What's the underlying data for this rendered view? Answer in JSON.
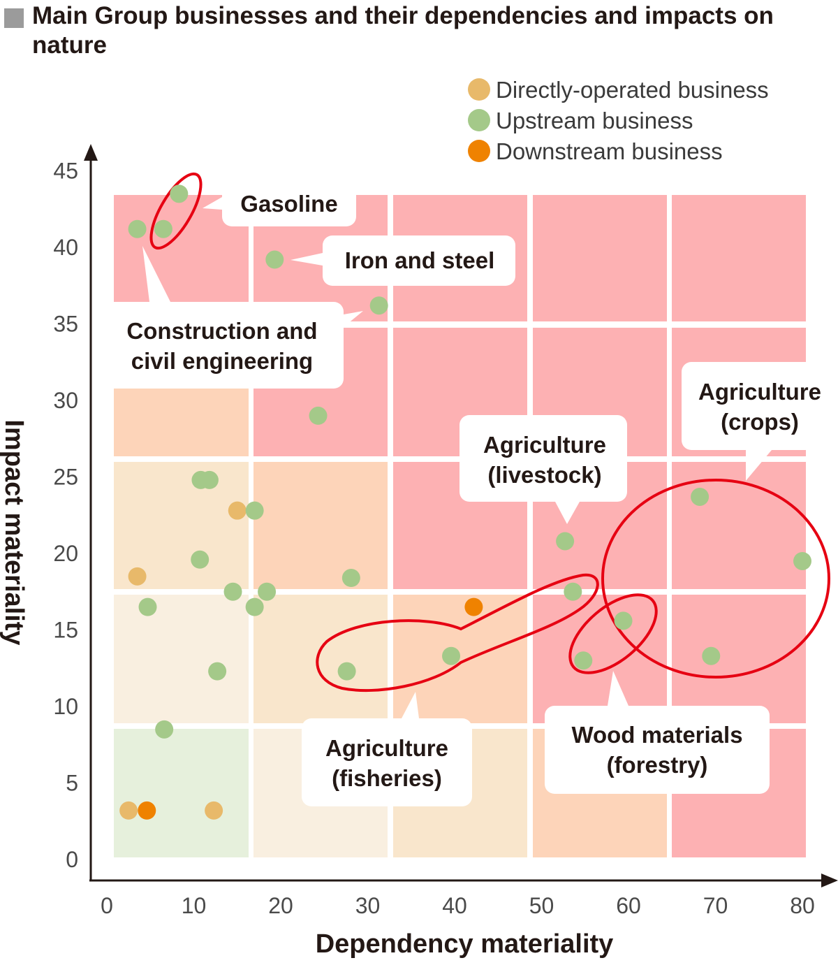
{
  "title": "Main Group businesses and their dependencies and impacts on nature",
  "legend": [
    {
      "label": "Directly-operated business",
      "color": "#e8b96a"
    },
    {
      "label": "Upstream business",
      "color": "#a4c989"
    },
    {
      "label": "Downstream business",
      "color": "#ef8200"
    }
  ],
  "colors": {
    "red_zone": "#fdb1b3",
    "orange_zone": "#fdd4b9",
    "peach_zone": "#f9e6cc",
    "cream_zone": "#f9efe0",
    "green_zone": "#e6f0dc",
    "highlight_ring": "#e60012"
  },
  "chart_data": {
    "type": "scatter",
    "xlabel": "Dependency materiality",
    "ylabel": "Impact materiality",
    "xlim": [
      0,
      80
    ],
    "ylim": [
      0,
      45
    ],
    "xticks": [
      "0",
      "10",
      "20",
      "30",
      "40",
      "50",
      "60",
      "70",
      "80"
    ],
    "yticks": [
      "0",
      "5",
      "10",
      "15",
      "20",
      "25",
      "30",
      "35",
      "40",
      "45"
    ],
    "grid": false,
    "legend_position": "top-right",
    "series": [
      {
        "name": "Directly-operated business",
        "color": "#e8b96a",
        "points": [
          [
            3.5,
            18.5
          ],
          [
            2.5,
            3.2
          ],
          [
            12.3,
            3.2
          ],
          [
            15,
            22.8
          ]
        ]
      },
      {
        "name": "Upstream business",
        "color": "#a4c989",
        "points": [
          [
            8.3,
            43.5
          ],
          [
            3.5,
            41.2
          ],
          [
            6.5,
            41.2
          ],
          [
            19.3,
            39.2
          ],
          [
            31.3,
            36.2
          ],
          [
            24.3,
            29
          ],
          [
            10.8,
            24.8
          ],
          [
            11.8,
            24.8
          ],
          [
            17,
            22.8
          ],
          [
            10.7,
            19.6
          ],
          [
            4.7,
            16.5
          ],
          [
            14.5,
            17.5
          ],
          [
            18.4,
            17.5
          ],
          [
            17,
            16.5
          ],
          [
            28.1,
            18.4
          ],
          [
            12.7,
            12.3
          ],
          [
            6.6,
            8.5
          ],
          [
            27.6,
            12.3
          ],
          [
            39.6,
            13.3
          ],
          [
            52.7,
            20.8
          ],
          [
            53.6,
            17.5
          ],
          [
            54.8,
            13
          ],
          [
            59.4,
            15.6
          ],
          [
            68.2,
            23.7
          ],
          [
            80,
            19.5
          ],
          [
            69.5,
            13.3
          ]
        ]
      },
      {
        "name": "Downstream business",
        "color": "#ef8200",
        "points": [
          [
            4.6,
            3.2
          ],
          [
            42.2,
            16.5
          ]
        ]
      }
    ],
    "annotations": [
      "Gasoline",
      "Iron and steel",
      "Construction and civil engineering",
      "Agriculture (livestock)",
      "Agriculture (crops)",
      "Agriculture (fisheries)",
      "Wood materials (forestry)"
    ]
  },
  "callouts": {
    "gasoline": [
      "Gasoline"
    ],
    "iron": [
      "Iron and steel"
    ],
    "construction": [
      "Construction and",
      "civil engineering"
    ],
    "livestock": [
      "Agriculture",
      "(livestock)"
    ],
    "crops": [
      "Agriculture",
      "(crops)"
    ],
    "fisheries": [
      "Agriculture",
      "(fisheries)"
    ],
    "wood": [
      "Wood materials",
      "(forestry)"
    ]
  }
}
